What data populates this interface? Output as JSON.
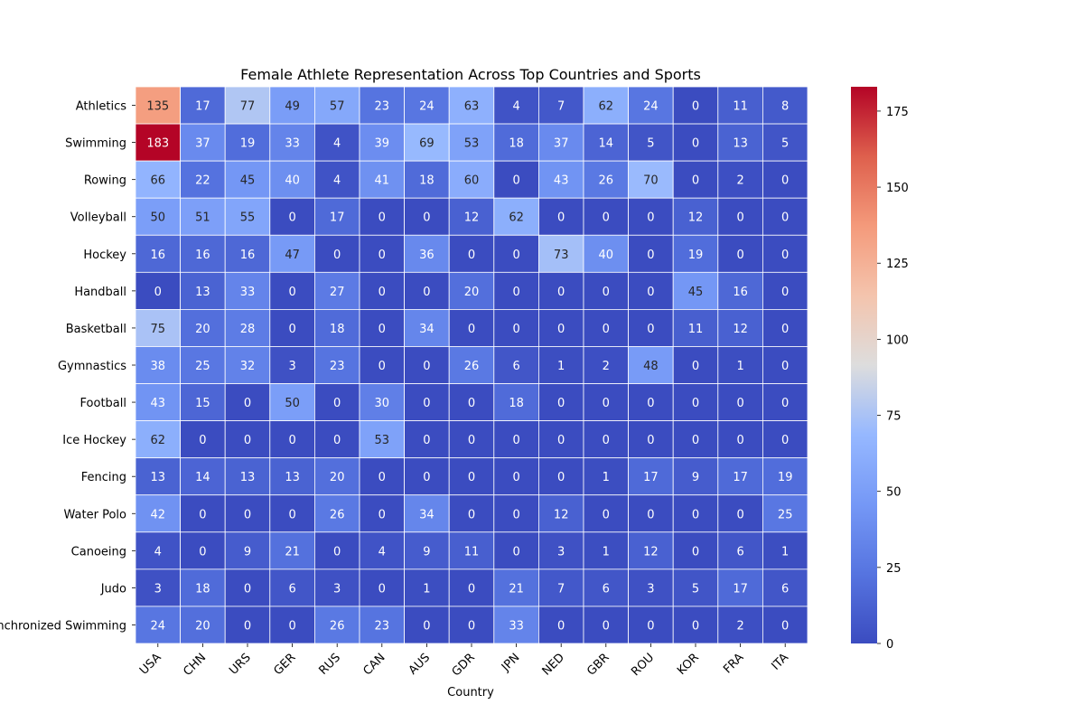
{
  "chart_data": {
    "type": "heatmap",
    "title": "Female Athlete Representation Across Top Countries and Sports",
    "xlabel": "Country",
    "ylabel": "",
    "x_categories": [
      "USA",
      "CHN",
      "URS",
      "GER",
      "RUS",
      "CAN",
      "AUS",
      "GDR",
      "JPN",
      "NED",
      "GBR",
      "ROU",
      "KOR",
      "FRA",
      "ITA"
    ],
    "y_categories": [
      "Athletics",
      "Swimming",
      "Rowing",
      "Volleyball",
      "Hockey",
      "Handball",
      "Basketball",
      "Gymnastics",
      "Football",
      "Ice Hockey",
      "Fencing",
      "Water Polo",
      "Canoeing",
      "Judo",
      "Synchronized Swimming"
    ],
    "values": [
      [
        135,
        17,
        77,
        49,
        57,
        23,
        24,
        63,
        4,
        7,
        62,
        24,
        0,
        11,
        8
      ],
      [
        183,
        37,
        19,
        33,
        4,
        39,
        69,
        53,
        18,
        37,
        14,
        5,
        0,
        13,
        5
      ],
      [
        66,
        22,
        45,
        40,
        4,
        41,
        18,
        60,
        0,
        43,
        26,
        70,
        0,
        2,
        0
      ],
      [
        50,
        51,
        55,
        0,
        17,
        0,
        0,
        12,
        62,
        0,
        0,
        0,
        12,
        0,
        0
      ],
      [
        16,
        16,
        16,
        47,
        0,
        0,
        36,
        0,
        0,
        73,
        40,
        0,
        19,
        0,
        0
      ],
      [
        0,
        13,
        33,
        0,
        27,
        0,
        0,
        20,
        0,
        0,
        0,
        0,
        45,
        16,
        0
      ],
      [
        75,
        20,
        28,
        0,
        18,
        0,
        34,
        0,
        0,
        0,
        0,
        0,
        11,
        12,
        0
      ],
      [
        38,
        25,
        32,
        3,
        23,
        0,
        0,
        26,
        6,
        1,
        2,
        48,
        0,
        1,
        0
      ],
      [
        43,
        15,
        0,
        50,
        0,
        30,
        0,
        0,
        18,
        0,
        0,
        0,
        0,
        0,
        0
      ],
      [
        62,
        0,
        0,
        0,
        0,
        53,
        0,
        0,
        0,
        0,
        0,
        0,
        0,
        0,
        0
      ],
      [
        13,
        14,
        13,
        13,
        20,
        0,
        0,
        0,
        0,
        0,
        1,
        17,
        9,
        17,
        19
      ],
      [
        42,
        0,
        0,
        0,
        26,
        0,
        34,
        0,
        0,
        12,
        0,
        0,
        0,
        0,
        25
      ],
      [
        4,
        0,
        9,
        21,
        0,
        4,
        9,
        11,
        0,
        3,
        1,
        12,
        0,
        6,
        1
      ],
      [
        3,
        18,
        0,
        6,
        3,
        0,
        1,
        0,
        21,
        7,
        6,
        3,
        5,
        17,
        6
      ],
      [
        24,
        20,
        0,
        0,
        26,
        23,
        0,
        0,
        33,
        0,
        0,
        0,
        0,
        2,
        0
      ]
    ],
    "colormap": "coolwarm",
    "vmin": 0,
    "vmax": 183,
    "colorbar_ticks": [
      0,
      25,
      50,
      75,
      100,
      125,
      150,
      175
    ],
    "grid": true,
    "annotations": true
  }
}
